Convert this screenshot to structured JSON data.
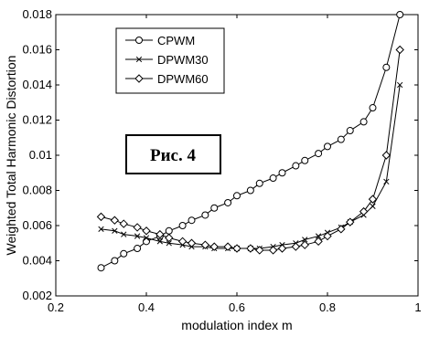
{
  "chart_data": {
    "type": "line",
    "title": "",
    "xlabel": "modulation index m",
    "ylabel": "Weighted Total Harmonic Distortion",
    "xlim": [
      0.2,
      1.0
    ],
    "ylim": [
      0.002,
      0.018
    ],
    "xticks": [
      "0.2",
      "0.4",
      "0.6",
      "0.8",
      "1"
    ],
    "yticks": [
      "0.002",
      "0.004",
      "0.006",
      "0.008",
      "0.01",
      "0.012",
      "0.014",
      "0.016",
      "0.018"
    ],
    "grid": false,
    "legend_position": "top-left",
    "annotation": "Рис. 4",
    "series": [
      {
        "name": "CPWM",
        "marker": "circle",
        "x": [
          0.3,
          0.33,
          0.35,
          0.38,
          0.4,
          0.43,
          0.45,
          0.48,
          0.5,
          0.53,
          0.55,
          0.58,
          0.6,
          0.63,
          0.65,
          0.68,
          0.7,
          0.73,
          0.75,
          0.78,
          0.8,
          0.83,
          0.85,
          0.88,
          0.9,
          0.93,
          0.96
        ],
        "y": [
          0.0036,
          0.004,
          0.0044,
          0.0047,
          0.0051,
          0.0054,
          0.0057,
          0.006,
          0.0063,
          0.0066,
          0.007,
          0.0073,
          0.0077,
          0.008,
          0.0084,
          0.0087,
          0.009,
          0.0094,
          0.0097,
          0.0101,
          0.0105,
          0.0109,
          0.0114,
          0.0119,
          0.0127,
          0.015,
          0.018
        ]
      },
      {
        "name": "DPWM30",
        "marker": "x",
        "x": [
          0.3,
          0.33,
          0.35,
          0.38,
          0.4,
          0.43,
          0.45,
          0.48,
          0.5,
          0.53,
          0.55,
          0.58,
          0.6,
          0.63,
          0.65,
          0.68,
          0.7,
          0.73,
          0.75,
          0.78,
          0.8,
          0.83,
          0.85,
          0.88,
          0.9,
          0.93,
          0.96
        ],
        "y": [
          0.0058,
          0.0057,
          0.0055,
          0.0054,
          0.0053,
          0.0051,
          0.005,
          0.0049,
          0.0048,
          0.0048,
          0.0047,
          0.0047,
          0.0047,
          0.0047,
          0.0047,
          0.0048,
          0.0049,
          0.005,
          0.0052,
          0.0054,
          0.0056,
          0.0059,
          0.0062,
          0.0066,
          0.0071,
          0.0085,
          0.014
        ]
      },
      {
        "name": "DPWM60",
        "marker": "diamond",
        "x": [
          0.3,
          0.33,
          0.35,
          0.38,
          0.4,
          0.43,
          0.45,
          0.48,
          0.5,
          0.53,
          0.55,
          0.58,
          0.6,
          0.63,
          0.65,
          0.68,
          0.7,
          0.73,
          0.75,
          0.78,
          0.8,
          0.83,
          0.85,
          0.88,
          0.9,
          0.93,
          0.96
        ],
        "y": [
          0.0065,
          0.0063,
          0.0061,
          0.0059,
          0.0057,
          0.0055,
          0.0053,
          0.0051,
          0.005,
          0.0049,
          0.0048,
          0.0048,
          0.0047,
          0.0047,
          0.0046,
          0.0046,
          0.0047,
          0.0048,
          0.0049,
          0.0051,
          0.0054,
          0.0058,
          0.0062,
          0.0068,
          0.0075,
          0.01,
          0.016
        ]
      }
    ]
  }
}
